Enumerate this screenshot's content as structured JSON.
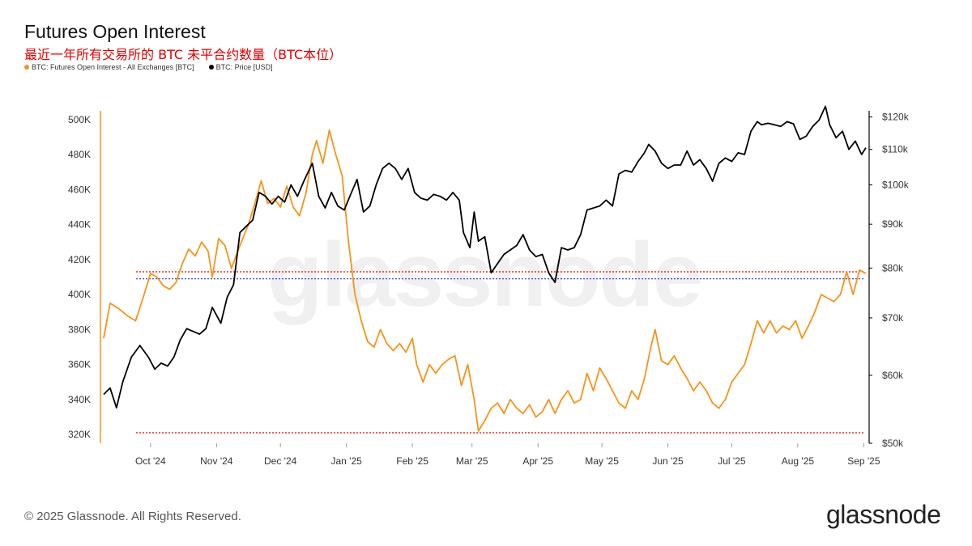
{
  "title": "Futures Open Interest",
  "subtitle": "最近一年所有交易所的 BTC 未平合约数量（BTC本位）",
  "legend": [
    {
      "label": "BTC: Futures Open Interest - All Exchanges [BTC]",
      "color": "#f7931a"
    },
    {
      "label": "BTC: Price [USD]",
      "color": "#000000"
    }
  ],
  "footer": "© 2025 Glassnode. All Rights Reserved.",
  "logo": "glassnode",
  "watermark": "glassnode",
  "colors": {
    "oi": "#f7931a",
    "price": "#000000",
    "ref_red": "#e00000",
    "ref_blue": "#3333cc"
  },
  "chart_data": {
    "type": "line",
    "x_ticks": [
      "Oct '24",
      "Nov '24",
      "Dec '24",
      "Jan '25",
      "Feb '25",
      "Mar '25",
      "Apr '25",
      "May '25",
      "Jun '25",
      "Jul '25",
      "Aug '25",
      "Sep '25"
    ],
    "y_left": {
      "ticks": [
        "500K",
        "480K",
        "460K",
        "440K",
        "420K",
        "400K",
        "380K",
        "360K",
        "340K",
        "320K"
      ],
      "range": [
        315000,
        505000
      ]
    },
    "y_right": {
      "ticks": [
        "$120k",
        "$110k",
        "$100k",
        "$90k",
        "$80k",
        "$70k",
        "$60k",
        "$50k"
      ],
      "range": [
        50000,
        122000
      ],
      "scale": "log"
    },
    "x_range": [
      "2024-09-09",
      "2025-09-02"
    ],
    "series": [
      {
        "name": "BTC: Futures Open Interest - All Exchanges [BTC]",
        "axis": "left",
        "color": "#f7931a",
        "points": [
          [
            "2024-09-09",
            375000
          ],
          [
            "2024-09-12",
            395000
          ],
          [
            "2024-09-16",
            392000
          ],
          [
            "2024-09-20",
            388000
          ],
          [
            "2024-09-24",
            385000
          ],
          [
            "2024-09-28",
            400000
          ],
          [
            "2024-10-01",
            412000
          ],
          [
            "2024-10-04",
            410000
          ],
          [
            "2024-10-07",
            405000
          ],
          [
            "2024-10-10",
            403000
          ],
          [
            "2024-10-13",
            407000
          ],
          [
            "2024-10-16",
            418000
          ],
          [
            "2024-10-19",
            426000
          ],
          [
            "2024-10-22",
            422000
          ],
          [
            "2024-10-25",
            430000
          ],
          [
            "2024-10-28",
            425000
          ],
          [
            "2024-10-30",
            410000
          ],
          [
            "2024-11-02",
            432000
          ],
          [
            "2024-11-05",
            428000
          ],
          [
            "2024-11-08",
            415000
          ],
          [
            "2024-11-12",
            428000
          ],
          [
            "2024-11-16",
            440000
          ],
          [
            "2024-11-19",
            452000
          ],
          [
            "2024-11-22",
            465000
          ],
          [
            "2024-11-25",
            452000
          ],
          [
            "2024-11-28",
            455000
          ],
          [
            "2024-12-01",
            450000
          ],
          [
            "2024-12-04",
            462000
          ],
          [
            "2024-12-07",
            450000
          ],
          [
            "2024-12-10",
            445000
          ],
          [
            "2024-12-13",
            458000
          ],
          [
            "2024-12-16",
            480000
          ],
          [
            "2024-12-18",
            488000
          ],
          [
            "2024-12-21",
            475000
          ],
          [
            "2024-12-24",
            494000
          ],
          [
            "2024-12-27",
            480000
          ],
          [
            "2024-12-30",
            468000
          ],
          [
            "2025-01-02",
            430000
          ],
          [
            "2025-01-05",
            400000
          ],
          [
            "2025-01-08",
            385000
          ],
          [
            "2025-01-11",
            373000
          ],
          [
            "2025-01-14",
            370000
          ],
          [
            "2025-01-17",
            380000
          ],
          [
            "2025-01-20",
            372000
          ],
          [
            "2025-01-23",
            368000
          ],
          [
            "2025-01-26",
            372000
          ],
          [
            "2025-01-29",
            367000
          ],
          [
            "2025-02-01",
            375000
          ],
          [
            "2025-02-03",
            360000
          ],
          [
            "2025-02-06",
            350000
          ],
          [
            "2025-02-09",
            360000
          ],
          [
            "2025-02-12",
            355000
          ],
          [
            "2025-02-15",
            360000
          ],
          [
            "2025-02-18",
            363000
          ],
          [
            "2025-02-21",
            365000
          ],
          [
            "2025-02-24",
            348000
          ],
          [
            "2025-02-27",
            360000
          ],
          [
            "2025-03-02",
            340000
          ],
          [
            "2025-03-04",
            322000
          ],
          [
            "2025-03-07",
            328000
          ],
          [
            "2025-03-10",
            335000
          ],
          [
            "2025-03-13",
            338000
          ],
          [
            "2025-03-16",
            332000
          ],
          [
            "2025-03-19",
            340000
          ],
          [
            "2025-03-22",
            335000
          ],
          [
            "2025-03-25",
            332000
          ],
          [
            "2025-03-28",
            337000
          ],
          [
            "2025-03-31",
            330000
          ],
          [
            "2025-04-03",
            333000
          ],
          [
            "2025-04-06",
            340000
          ],
          [
            "2025-04-09",
            332000
          ],
          [
            "2025-04-12",
            340000
          ],
          [
            "2025-04-15",
            345000
          ],
          [
            "2025-04-18",
            338000
          ],
          [
            "2025-04-21",
            340000
          ],
          [
            "2025-04-24",
            355000
          ],
          [
            "2025-04-27",
            345000
          ],
          [
            "2025-04-30",
            358000
          ],
          [
            "2025-05-03",
            352000
          ],
          [
            "2025-05-06",
            345000
          ],
          [
            "2025-05-09",
            338000
          ],
          [
            "2025-05-12",
            335000
          ],
          [
            "2025-05-15",
            345000
          ],
          [
            "2025-05-18",
            340000
          ],
          [
            "2025-05-21",
            352000
          ],
          [
            "2025-05-24",
            370000
          ],
          [
            "2025-05-26",
            380000
          ],
          [
            "2025-05-29",
            362000
          ],
          [
            "2025-06-01",
            360000
          ],
          [
            "2025-06-04",
            365000
          ],
          [
            "2025-06-07",
            358000
          ],
          [
            "2025-06-10",
            352000
          ],
          [
            "2025-06-13",
            345000
          ],
          [
            "2025-06-16",
            350000
          ],
          [
            "2025-06-19",
            345000
          ],
          [
            "2025-06-22",
            338000
          ],
          [
            "2025-06-25",
            335000
          ],
          [
            "2025-06-28",
            340000
          ],
          [
            "2025-07-01",
            350000
          ],
          [
            "2025-07-04",
            355000
          ],
          [
            "2025-07-07",
            360000
          ],
          [
            "2025-07-10",
            372000
          ],
          [
            "2025-07-13",
            385000
          ],
          [
            "2025-07-16",
            378000
          ],
          [
            "2025-07-19",
            385000
          ],
          [
            "2025-07-22",
            378000
          ],
          [
            "2025-07-25",
            382000
          ],
          [
            "2025-07-28",
            380000
          ],
          [
            "2025-07-31",
            385000
          ],
          [
            "2025-08-03",
            375000
          ],
          [
            "2025-08-06",
            382000
          ],
          [
            "2025-08-09",
            390000
          ],
          [
            "2025-08-12",
            400000
          ],
          [
            "2025-08-15",
            398000
          ],
          [
            "2025-08-18",
            396000
          ],
          [
            "2025-08-21",
            400000
          ],
          [
            "2025-08-24",
            413000
          ],
          [
            "2025-08-27",
            400000
          ],
          [
            "2025-08-30",
            414000
          ],
          [
            "2025-09-02",
            412000
          ]
        ]
      },
      {
        "name": "BTC: Price [USD]",
        "axis": "right",
        "color": "#000000",
        "points": [
          [
            "2024-09-09",
            57000
          ],
          [
            "2024-09-12",
            58000
          ],
          [
            "2024-09-15",
            55000
          ],
          [
            "2024-09-18",
            59000
          ],
          [
            "2024-09-22",
            63000
          ],
          [
            "2024-09-26",
            65000
          ],
          [
            "2024-09-30",
            63000
          ],
          [
            "2024-10-03",
            61000
          ],
          [
            "2024-10-06",
            62000
          ],
          [
            "2024-10-09",
            61500
          ],
          [
            "2024-10-12",
            63000
          ],
          [
            "2024-10-15",
            66000
          ],
          [
            "2024-10-18",
            68000
          ],
          [
            "2024-10-21",
            67500
          ],
          [
            "2024-10-24",
            67000
          ],
          [
            "2024-10-27",
            68000
          ],
          [
            "2024-10-30",
            72000
          ],
          [
            "2024-11-03",
            69000
          ],
          [
            "2024-11-06",
            74000
          ],
          [
            "2024-11-09",
            76500
          ],
          [
            "2024-11-12",
            88000
          ],
          [
            "2024-11-15",
            89500
          ],
          [
            "2024-11-18",
            91000
          ],
          [
            "2024-11-21",
            98000
          ],
          [
            "2024-11-24",
            97000
          ],
          [
            "2024-11-27",
            95000
          ],
          [
            "2024-11-30",
            97000
          ],
          [
            "2024-12-03",
            95500
          ],
          [
            "2024-12-06",
            100000
          ],
          [
            "2024-12-09",
            97000
          ],
          [
            "2024-12-12",
            101000
          ],
          [
            "2024-12-16",
            106000
          ],
          [
            "2024-12-19",
            97000
          ],
          [
            "2024-12-22",
            94000
          ],
          [
            "2024-12-25",
            98000
          ],
          [
            "2024-12-28",
            94500
          ],
          [
            "2024-12-31",
            93500
          ],
          [
            "2025-01-03",
            97500
          ],
          [
            "2025-01-06",
            101500
          ],
          [
            "2025-01-09",
            93000
          ],
          [
            "2025-01-12",
            94500
          ],
          [
            "2025-01-15",
            100000
          ],
          [
            "2025-01-18",
            104500
          ],
          [
            "2025-01-21",
            106000
          ],
          [
            "2025-01-24",
            104500
          ],
          [
            "2025-01-27",
            101500
          ],
          [
            "2025-01-30",
            104500
          ],
          [
            "2025-02-02",
            98000
          ],
          [
            "2025-02-05",
            96500
          ],
          [
            "2025-02-08",
            96000
          ],
          [
            "2025-02-11",
            97500
          ],
          [
            "2025-02-14",
            97000
          ],
          [
            "2025-02-17",
            96000
          ],
          [
            "2025-02-20",
            98000
          ],
          [
            "2025-02-23",
            96000
          ],
          [
            "2025-02-25",
            88000
          ],
          [
            "2025-02-28",
            84500
          ],
          [
            "2025-03-02",
            93000
          ],
          [
            "2025-03-04",
            86000
          ],
          [
            "2025-03-07",
            87000
          ],
          [
            "2025-03-10",
            79000
          ],
          [
            "2025-03-13",
            81000
          ],
          [
            "2025-03-16",
            83000
          ],
          [
            "2025-03-19",
            84000
          ],
          [
            "2025-03-22",
            85000
          ],
          [
            "2025-03-25",
            87500
          ],
          [
            "2025-03-28",
            84000
          ],
          [
            "2025-03-31",
            82500
          ],
          [
            "2025-04-03",
            83000
          ],
          [
            "2025-04-06",
            79000
          ],
          [
            "2025-04-09",
            77000
          ],
          [
            "2025-04-12",
            84500
          ],
          [
            "2025-04-15",
            84000
          ],
          [
            "2025-04-18",
            84500
          ],
          [
            "2025-04-21",
            87500
          ],
          [
            "2025-04-24",
            93500
          ],
          [
            "2025-04-27",
            94000
          ],
          [
            "2025-04-30",
            94500
          ],
          [
            "2025-05-03",
            96000
          ],
          [
            "2025-05-06",
            94500
          ],
          [
            "2025-05-09",
            103000
          ],
          [
            "2025-05-12",
            104000
          ],
          [
            "2025-05-15",
            103500
          ],
          [
            "2025-05-18",
            106500
          ],
          [
            "2025-05-21",
            109000
          ],
          [
            "2025-05-23",
            111500
          ],
          [
            "2025-05-26",
            109500
          ],
          [
            "2025-05-29",
            106000
          ],
          [
            "2025-06-01",
            104500
          ],
          [
            "2025-06-04",
            105500
          ],
          [
            "2025-06-07",
            105500
          ],
          [
            "2025-06-10",
            109500
          ],
          [
            "2025-06-13",
            105500
          ],
          [
            "2025-06-16",
            107000
          ],
          [
            "2025-06-19",
            104500
          ],
          [
            "2025-06-22",
            101000
          ],
          [
            "2025-06-25",
            106000
          ],
          [
            "2025-06-28",
            107500
          ],
          [
            "2025-07-01",
            106500
          ],
          [
            "2025-07-04",
            109000
          ],
          [
            "2025-07-07",
            108500
          ],
          [
            "2025-07-10",
            115500
          ],
          [
            "2025-07-13",
            118500
          ],
          [
            "2025-07-15",
            117500
          ],
          [
            "2025-07-18",
            118000
          ],
          [
            "2025-07-21",
            117500
          ],
          [
            "2025-07-24",
            117000
          ],
          [
            "2025-07-27",
            118500
          ],
          [
            "2025-07-30",
            117800
          ],
          [
            "2025-08-02",
            113000
          ],
          [
            "2025-08-05",
            114000
          ],
          [
            "2025-08-08",
            117000
          ],
          [
            "2025-08-11",
            119000
          ],
          [
            "2025-08-14",
            123500
          ],
          [
            "2025-08-16",
            117500
          ],
          [
            "2025-08-19",
            113500
          ],
          [
            "2025-08-22",
            115500
          ],
          [
            "2025-08-25",
            110000
          ],
          [
            "2025-08-28",
            112500
          ],
          [
            "2025-08-31",
            108500
          ],
          [
            "2025-09-02",
            110500
          ]
        ]
      }
    ],
    "reference_lines": [
      {
        "axis": "left",
        "value": 413000,
        "color": "#e00000",
        "style": "dotted"
      },
      {
        "axis": "left",
        "value": 321000,
        "color": "#e00000",
        "style": "dotted"
      },
      {
        "axis": "left",
        "value": 409000,
        "color": "#3333cc",
        "style": "dotted"
      }
    ],
    "grid": false,
    "legend_position": "top-left"
  }
}
